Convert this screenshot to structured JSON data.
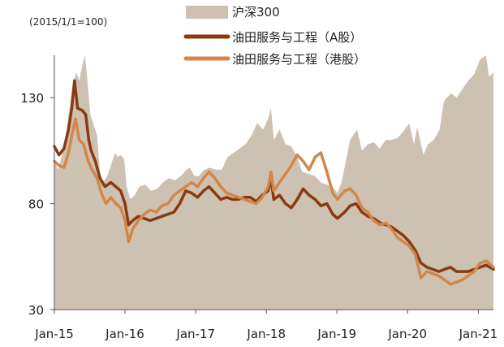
{
  "chart_data": {
    "type": "area",
    "title": "",
    "unit_note": "(2015/1/1=100)",
    "xlabel": "",
    "ylabel": "",
    "ylim": [
      30,
      150
    ],
    "xlim": [
      "2015-01-01",
      "2021-03-20"
    ],
    "x_ticks": [
      "Jan-15",
      "Jan-16",
      "Jan-17",
      "Jan-18",
      "Jan-19",
      "Jan-20",
      "Jan-21"
    ],
    "x_tick_dates": [
      "2015-01-01",
      "2016-01-01",
      "2017-01-01",
      "2018-01-01",
      "2019-01-01",
      "2020-01-01",
      "2021-01-01"
    ],
    "y_ticks": [
      30,
      80,
      130
    ],
    "grid": false,
    "legend_position": "top-center",
    "series": [
      {
        "name": "沪深300",
        "kind": "area",
        "color": "#cdc1b2",
        "points": [
          [
            "2015-01-01",
            100
          ],
          [
            "2015-01-20",
            96
          ],
          [
            "2015-02-10",
            103
          ],
          [
            "2015-03-01",
            112
          ],
          [
            "2015-03-20",
            125
          ],
          [
            "2015-04-10",
            138
          ],
          [
            "2015-04-25",
            142
          ],
          [
            "2015-05-10",
            138
          ],
          [
            "2015-05-25",
            145
          ],
          [
            "2015-06-08",
            150
          ],
          [
            "2015-06-22",
            137
          ],
          [
            "2015-07-06",
            122
          ],
          [
            "2015-07-20",
            118
          ],
          [
            "2015-08-10",
            112
          ],
          [
            "2015-08-24",
            95
          ],
          [
            "2015-09-10",
            90
          ],
          [
            "2015-10-01",
            93
          ],
          [
            "2015-10-20",
            98
          ],
          [
            "2015-11-10",
            104
          ],
          [
            "2015-11-25",
            102
          ],
          [
            "2015-12-10",
            103
          ],
          [
            "2015-12-28",
            101
          ],
          [
            "2016-01-10",
            88
          ],
          [
            "2016-01-28",
            82
          ],
          [
            "2016-02-20",
            84
          ],
          [
            "2016-03-15",
            88
          ],
          [
            "2016-04-15",
            89
          ],
          [
            "2016-05-15",
            86
          ],
          [
            "2016-06-15",
            87
          ],
          [
            "2016-07-15",
            90
          ],
          [
            "2016-08-15",
            92
          ],
          [
            "2016-09-15",
            91
          ],
          [
            "2016-10-15",
            93
          ],
          [
            "2016-11-15",
            96
          ],
          [
            "2016-12-01",
            97
          ],
          [
            "2016-12-25",
            93
          ],
          [
            "2017-01-15",
            93
          ],
          [
            "2017-02-15",
            96
          ],
          [
            "2017-03-15",
            97
          ],
          [
            "2017-04-15",
            96
          ],
          [
            "2017-05-15",
            96
          ],
          [
            "2017-06-15",
            102
          ],
          [
            "2017-07-15",
            104
          ],
          [
            "2017-08-15",
            106
          ],
          [
            "2017-09-15",
            108
          ],
          [
            "2017-10-15",
            112
          ],
          [
            "2017-11-15",
            118
          ],
          [
            "2017-12-15",
            115
          ],
          [
            "2018-01-10",
            120
          ],
          [
            "2018-01-25",
            125
          ],
          [
            "2018-02-09",
            110
          ],
          [
            "2018-03-10",
            115
          ],
          [
            "2018-04-10",
            108
          ],
          [
            "2018-05-10",
            107
          ],
          [
            "2018-06-10",
            102
          ],
          [
            "2018-07-05",
            95
          ],
          [
            "2018-08-10",
            94
          ],
          [
            "2018-09-10",
            93
          ],
          [
            "2018-10-10",
            90
          ],
          [
            "2018-11-10",
            89
          ],
          [
            "2018-12-10",
            88
          ],
          [
            "2019-01-03",
            85
          ],
          [
            "2019-01-25",
            90
          ],
          [
            "2019-02-20",
            102
          ],
          [
            "2019-03-10",
            110
          ],
          [
            "2019-04-15",
            115
          ],
          [
            "2019-05-10",
            105
          ],
          [
            "2019-06-10",
            108
          ],
          [
            "2019-07-10",
            109
          ],
          [
            "2019-08-10",
            106
          ],
          [
            "2019-09-10",
            110
          ],
          [
            "2019-10-10",
            110
          ],
          [
            "2019-11-10",
            111
          ],
          [
            "2019-12-10",
            114
          ],
          [
            "2020-01-10",
            118
          ],
          [
            "2020-02-03",
            108
          ],
          [
            "2020-02-20",
            116
          ],
          [
            "2020-03-23",
            103
          ],
          [
            "2020-04-15",
            108
          ],
          [
            "2020-05-15",
            110
          ],
          [
            "2020-06-15",
            115
          ],
          [
            "2020-07-06",
            128
          ],
          [
            "2020-07-20",
            130
          ],
          [
            "2020-08-15",
            132
          ],
          [
            "2020-09-10",
            130
          ],
          [
            "2020-10-10",
            134
          ],
          [
            "2020-11-10",
            138
          ],
          [
            "2020-12-10",
            141
          ],
          [
            "2021-01-10",
            148
          ],
          [
            "2021-02-10",
            150
          ],
          [
            "2021-02-25",
            140
          ],
          [
            "2021-03-10",
            141
          ],
          [
            "2021-03-20",
            142
          ]
        ]
      },
      {
        "name": "油田服务与工程（A股）",
        "kind": "line",
        "color": "#8a3a12",
        "points": [
          [
            "2015-01-01",
            107
          ],
          [
            "2015-01-25",
            103
          ],
          [
            "2015-02-20",
            106
          ],
          [
            "2015-03-15",
            115
          ],
          [
            "2015-04-01",
            125
          ],
          [
            "2015-04-15",
            138
          ],
          [
            "2015-05-01",
            125
          ],
          [
            "2015-05-25",
            124
          ],
          [
            "2015-06-12",
            122
          ],
          [
            "2015-06-28",
            110
          ],
          [
            "2015-07-10",
            105
          ],
          [
            "2015-08-01",
            100
          ],
          [
            "2015-08-25",
            92
          ],
          [
            "2015-09-20",
            88
          ],
          [
            "2015-10-20",
            90
          ],
          [
            "2015-11-15",
            88
          ],
          [
            "2015-12-10",
            86
          ],
          [
            "2016-01-01",
            80
          ],
          [
            "2016-01-20",
            70
          ],
          [
            "2016-02-10",
            72
          ],
          [
            "2016-03-10",
            74
          ],
          [
            "2016-04-10",
            73
          ],
          [
            "2016-05-10",
            72
          ],
          [
            "2016-06-10",
            73
          ],
          [
            "2016-07-10",
            74
          ],
          [
            "2016-08-10",
            75
          ],
          [
            "2016-09-10",
            76
          ],
          [
            "2016-10-10",
            80
          ],
          [
            "2016-11-10",
            86
          ],
          [
            "2016-12-10",
            85
          ],
          [
            "2017-01-10",
            83
          ],
          [
            "2017-02-10",
            86
          ],
          [
            "2017-03-10",
            88
          ],
          [
            "2017-04-10",
            85
          ],
          [
            "2017-05-10",
            82
          ],
          [
            "2017-06-10",
            83
          ],
          [
            "2017-07-10",
            82
          ],
          [
            "2017-08-10",
            82
          ],
          [
            "2017-09-10",
            83
          ],
          [
            "2017-10-10",
            83
          ],
          [
            "2017-11-10",
            81
          ],
          [
            "2017-12-10",
            84
          ],
          [
            "2018-01-10",
            86
          ],
          [
            "2018-01-25",
            92
          ],
          [
            "2018-02-08",
            82
          ],
          [
            "2018-03-10",
            84
          ],
          [
            "2018-04-10",
            80
          ],
          [
            "2018-05-10",
            78
          ],
          [
            "2018-06-10",
            82
          ],
          [
            "2018-07-10",
            87
          ],
          [
            "2018-08-10",
            84
          ],
          [
            "2018-09-10",
            82
          ],
          [
            "2018-10-10",
            79
          ],
          [
            "2018-11-10",
            80
          ],
          [
            "2018-12-10",
            75
          ],
          [
            "2019-01-03",
            73
          ],
          [
            "2019-02-10",
            76
          ],
          [
            "2019-03-10",
            79
          ],
          [
            "2019-04-10",
            80
          ],
          [
            "2019-05-10",
            76
          ],
          [
            "2019-06-10",
            74
          ],
          [
            "2019-07-10",
            73
          ],
          [
            "2019-08-10",
            71
          ],
          [
            "2019-09-10",
            70
          ],
          [
            "2019-10-10",
            69
          ],
          [
            "2019-11-10",
            67
          ],
          [
            "2019-12-10",
            65
          ],
          [
            "2020-01-10",
            62
          ],
          [
            "2020-02-10",
            58
          ],
          [
            "2020-03-10",
            52
          ],
          [
            "2020-04-10",
            50
          ],
          [
            "2020-05-10",
            49
          ],
          [
            "2020-06-10",
            48
          ],
          [
            "2020-07-10",
            49
          ],
          [
            "2020-08-10",
            50
          ],
          [
            "2020-09-10",
            48
          ],
          [
            "2020-10-10",
            48
          ],
          [
            "2020-11-10",
            48
          ],
          [
            "2020-12-10",
            49
          ],
          [
            "2021-01-10",
            50
          ],
          [
            "2021-02-10",
            51
          ],
          [
            "2021-03-20",
            49
          ]
        ]
      },
      {
        "name": "油田服务与工程（港股）",
        "kind": "line",
        "color": "#d4864a",
        "points": [
          [
            "2015-01-01",
            100
          ],
          [
            "2015-01-25",
            98
          ],
          [
            "2015-02-20",
            97
          ],
          [
            "2015-03-15",
            104
          ],
          [
            "2015-04-01",
            112
          ],
          [
            "2015-04-20",
            120
          ],
          [
            "2015-05-10",
            110
          ],
          [
            "2015-06-01",
            108
          ],
          [
            "2015-06-25",
            100
          ],
          [
            "2015-07-15",
            96
          ],
          [
            "2015-08-10",
            92
          ],
          [
            "2015-09-01",
            85
          ],
          [
            "2015-09-25",
            80
          ],
          [
            "2015-10-20",
            83
          ],
          [
            "2015-11-15",
            80
          ],
          [
            "2015-12-10",
            78
          ],
          [
            "2016-01-01",
            72
          ],
          [
            "2016-01-20",
            62
          ],
          [
            "2016-02-10",
            68
          ],
          [
            "2016-03-10",
            72
          ],
          [
            "2016-04-10",
            75
          ],
          [
            "2016-05-10",
            77
          ],
          [
            "2016-06-10",
            76
          ],
          [
            "2016-07-10",
            79
          ],
          [
            "2016-08-10",
            80
          ],
          [
            "2016-09-10",
            84
          ],
          [
            "2016-10-10",
            86
          ],
          [
            "2016-11-10",
            88
          ],
          [
            "2016-12-10",
            90
          ],
          [
            "2017-01-10",
            88
          ],
          [
            "2017-02-10",
            92
          ],
          [
            "2017-03-10",
            95
          ],
          [
            "2017-04-10",
            92
          ],
          [
            "2017-05-10",
            88
          ],
          [
            "2017-06-10",
            85
          ],
          [
            "2017-07-10",
            84
          ],
          [
            "2017-08-10",
            83
          ],
          [
            "2017-09-10",
            82
          ],
          [
            "2017-10-10",
            81
          ],
          [
            "2017-11-10",
            80
          ],
          [
            "2017-12-10",
            83
          ],
          [
            "2018-01-10",
            88
          ],
          [
            "2018-01-25",
            95
          ],
          [
            "2018-02-08",
            86
          ],
          [
            "2018-03-10",
            90
          ],
          [
            "2018-04-10",
            94
          ],
          [
            "2018-05-10",
            98
          ],
          [
            "2018-06-10",
            103
          ],
          [
            "2018-07-10",
            100
          ],
          [
            "2018-08-10",
            96
          ],
          [
            "2018-09-10",
            102
          ],
          [
            "2018-10-10",
            104
          ],
          [
            "2018-11-10",
            95
          ],
          [
            "2018-12-10",
            85
          ],
          [
            "2019-01-03",
            82
          ],
          [
            "2019-02-10",
            86
          ],
          [
            "2019-03-10",
            87
          ],
          [
            "2019-04-10",
            84
          ],
          [
            "2019-05-10",
            78
          ],
          [
            "2019-06-10",
            76
          ],
          [
            "2019-07-10",
            72
          ],
          [
            "2019-08-10",
            70
          ],
          [
            "2019-09-10",
            71
          ],
          [
            "2019-10-10",
            68
          ],
          [
            "2019-11-10",
            64
          ],
          [
            "2019-12-10",
            62
          ],
          [
            "2020-01-10",
            60
          ],
          [
            "2020-02-10",
            56
          ],
          [
            "2020-03-10",
            45
          ],
          [
            "2020-04-10",
            48
          ],
          [
            "2020-05-10",
            47
          ],
          [
            "2020-06-10",
            46
          ],
          [
            "2020-07-10",
            44
          ],
          [
            "2020-08-10",
            42
          ],
          [
            "2020-09-10",
            43
          ],
          [
            "2020-10-10",
            44
          ],
          [
            "2020-11-10",
            46
          ],
          [
            "2020-12-10",
            48
          ],
          [
            "2021-01-10",
            52
          ],
          [
            "2021-02-10",
            53
          ],
          [
            "2021-03-20",
            50
          ]
        ]
      }
    ]
  }
}
